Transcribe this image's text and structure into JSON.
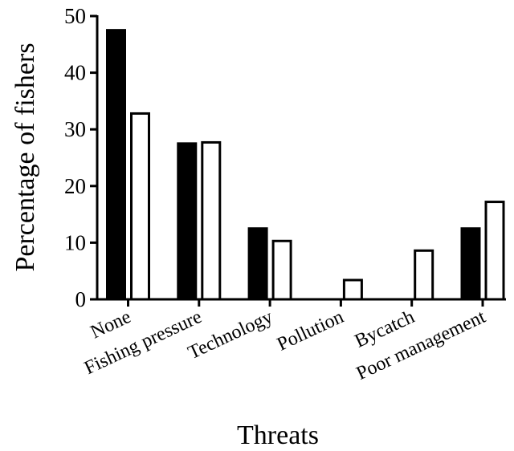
{
  "chart_data": {
    "type": "bar",
    "title": "",
    "xlabel": "Threats",
    "ylabel": "Percentage of fishers",
    "categories": [
      "None",
      "Fishing pressure",
      "Technology",
      "Pollution",
      "Bycatch",
      "Poor management"
    ],
    "series": [
      {
        "fill": "#000000",
        "values": [
          47.5,
          27.5,
          12.5,
          0,
          0,
          12.5
        ]
      },
      {
        "fill": "#ffffff",
        "values": [
          32.8,
          27.7,
          10.3,
          3.4,
          8.6,
          17.2
        ]
      }
    ],
    "ylim": [
      0,
      50
    ],
    "yticks": [
      0,
      10,
      20,
      30,
      40,
      50
    ],
    "grid": false,
    "legend": "none"
  }
}
